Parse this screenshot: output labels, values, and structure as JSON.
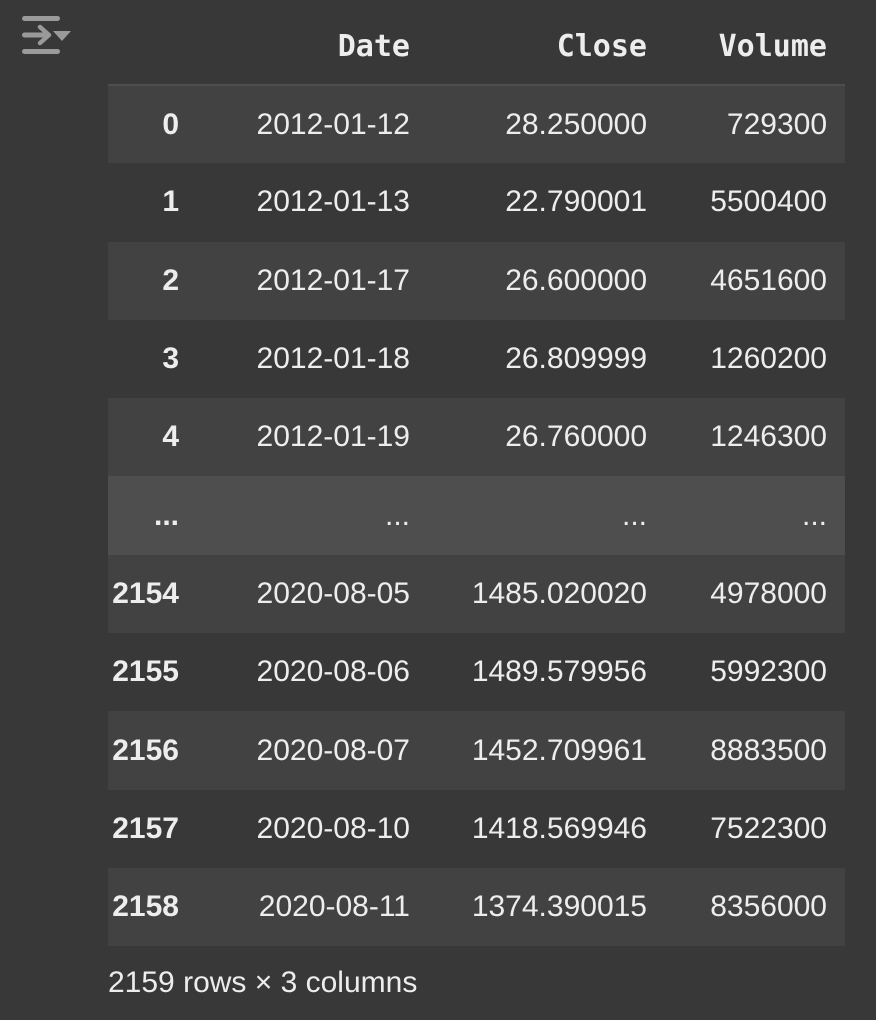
{
  "output_toolbar": {
    "icon": "output-actions-icon"
  },
  "dataframe": {
    "columns": [
      "Date",
      "Close",
      "Volume"
    ],
    "rows": [
      {
        "index": "0",
        "date": "2012-01-12",
        "close": "28.250000",
        "volume": "729300"
      },
      {
        "index": "1",
        "date": "2012-01-13",
        "close": "22.790001",
        "volume": "5500400"
      },
      {
        "index": "2",
        "date": "2012-01-17",
        "close": "26.600000",
        "volume": "4651600"
      },
      {
        "index": "3",
        "date": "2012-01-18",
        "close": "26.809999",
        "volume": "1260200"
      },
      {
        "index": "4",
        "date": "2012-01-19",
        "close": "26.760000",
        "volume": "1246300"
      },
      {
        "index": "...",
        "date": "...",
        "close": "...",
        "volume": "..."
      },
      {
        "index": "2154",
        "date": "2020-08-05",
        "close": "1485.020020",
        "volume": "4978000"
      },
      {
        "index": "2155",
        "date": "2020-08-06",
        "close": "1489.579956",
        "volume": "5992300"
      },
      {
        "index": "2156",
        "date": "2020-08-07",
        "close": "1452.709961",
        "volume": "8883500"
      },
      {
        "index": "2157",
        "date": "2020-08-10",
        "close": "1418.569946",
        "volume": "7522300"
      },
      {
        "index": "2158",
        "date": "2020-08-11",
        "close": "1374.390015",
        "volume": "8356000"
      }
    ],
    "shape_text": "2159 rows × 3 columns"
  }
}
